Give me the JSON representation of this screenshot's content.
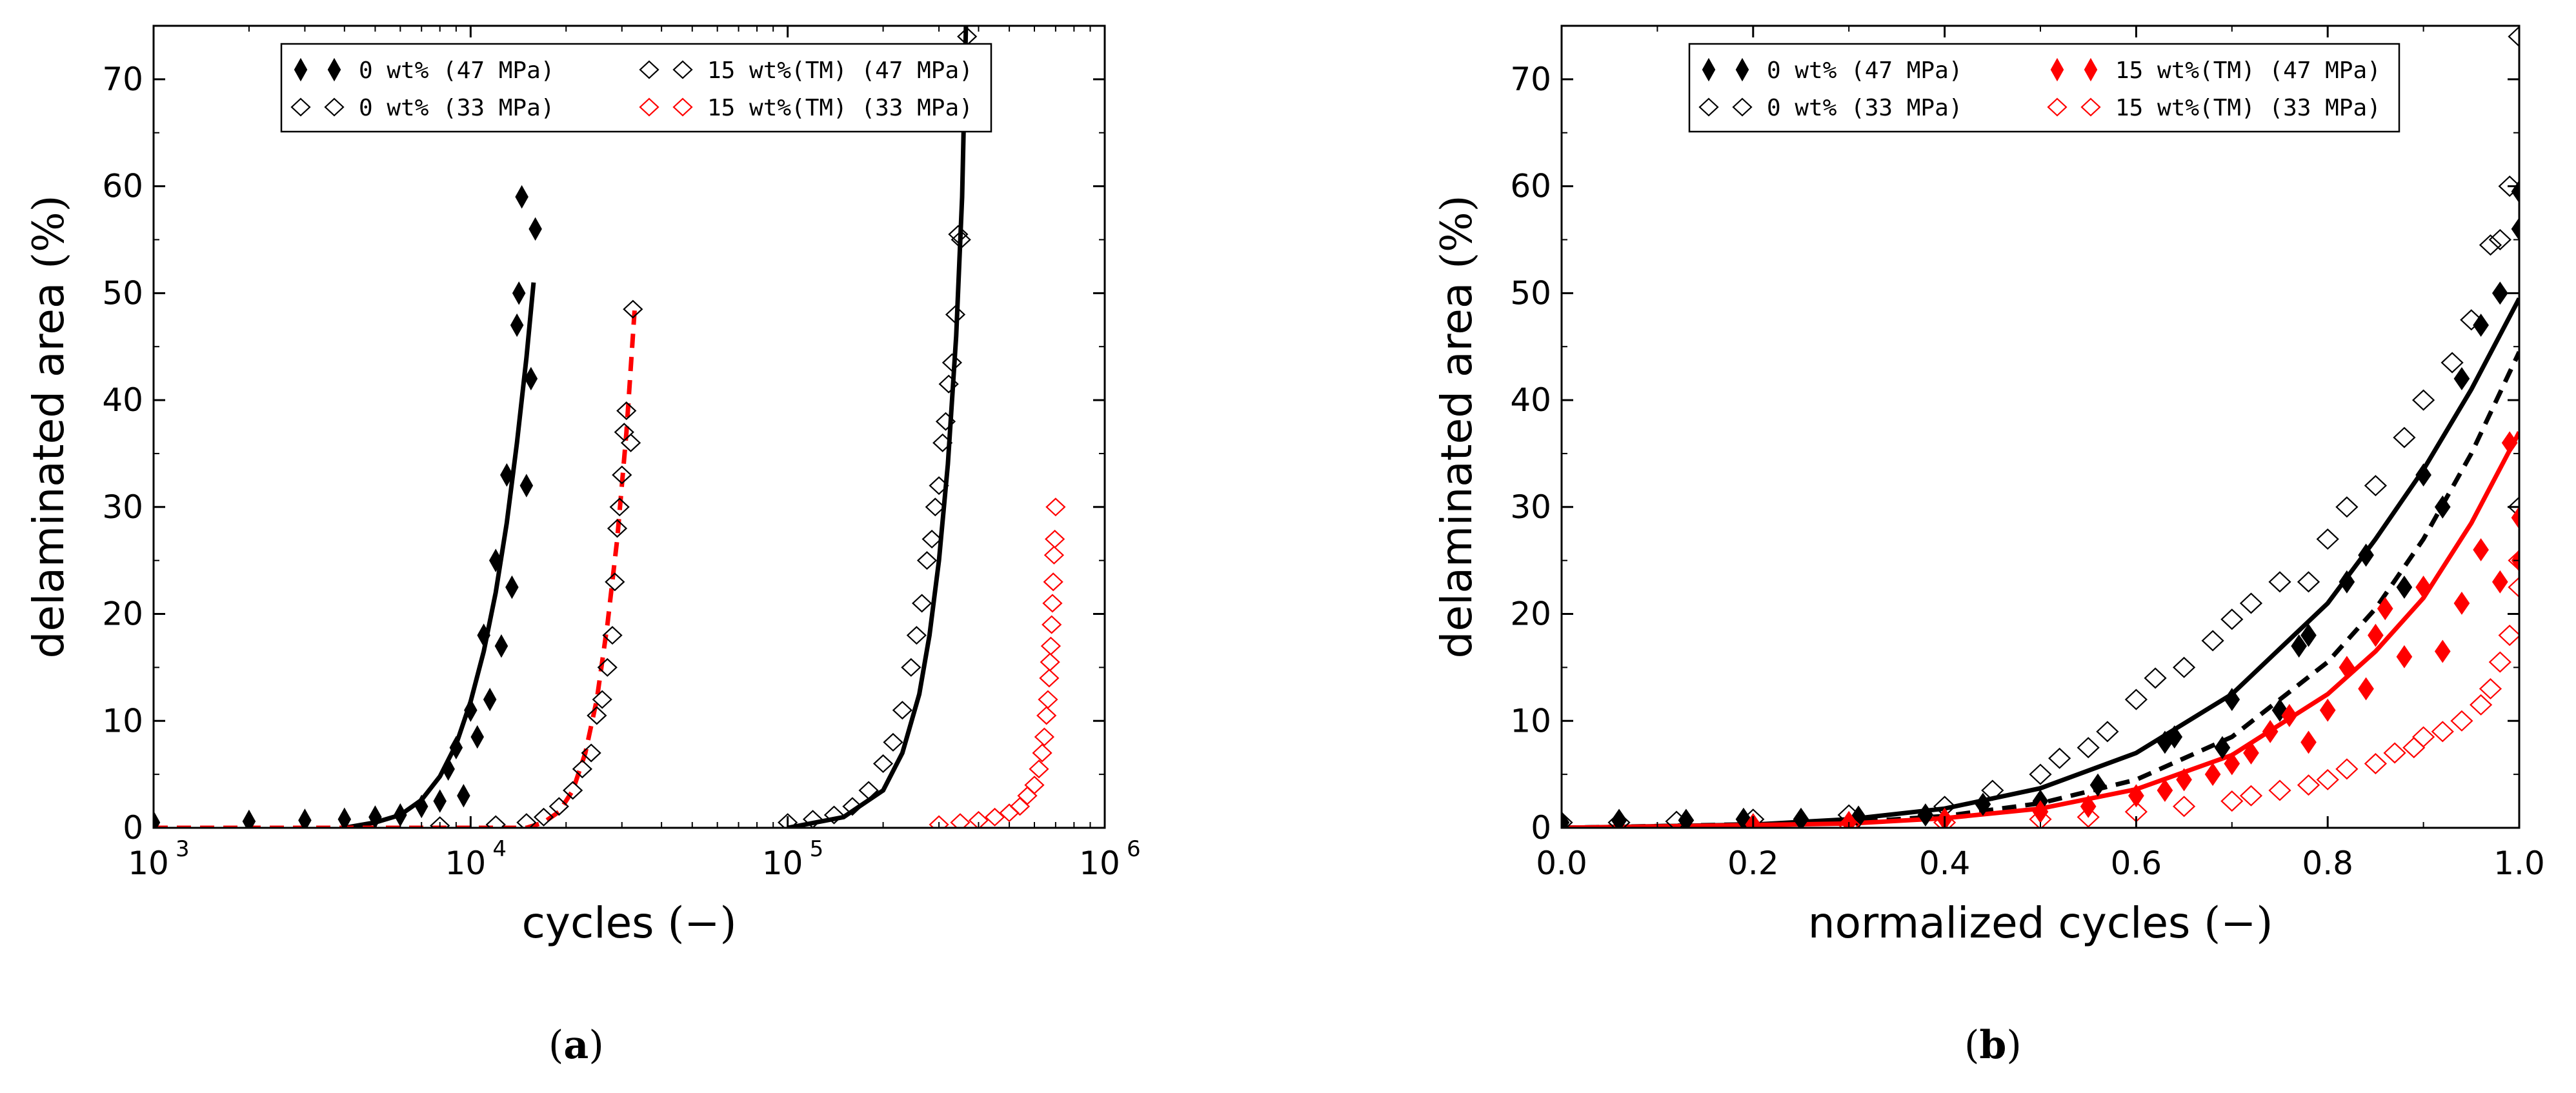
{
  "chart_data": [
    {
      "id": "a",
      "type": "scatter",
      "panel_label": "a",
      "xscale": "log",
      "xlim": [
        1000,
        1000000
      ],
      "ylim": [
        0,
        75
      ],
      "xlabel": "cycles",
      "xlabel_unit": "(−)",
      "ylabel": "delaminated area",
      "ylabel_unit": "(%)",
      "yticks": [
        0,
        10,
        20,
        30,
        40,
        50,
        60,
        70
      ],
      "xticks": [
        {
          "value": 1000,
          "base": "10",
          "exp": "3"
        },
        {
          "value": 10000,
          "base": "10",
          "exp": "4"
        },
        {
          "value": 100000,
          "base": "10",
          "exp": "5"
        },
        {
          "value": 1000000,
          "base": "10",
          "exp": "6"
        }
      ],
      "legend_position": "top",
      "legend_columns": [
        [
          {
            "label": "0 wt% (47 MPa)",
            "marker": "diamond-filled",
            "color": "#000000"
          },
          {
            "label": "0 wt% (33 MPa)",
            "marker": "diamond-open",
            "color": "#000000"
          }
        ],
        [
          {
            "label": "15 wt%(TM) (47 MPa)",
            "marker": "diamond-open",
            "color": "#000000"
          },
          {
            "label": "15 wt%(TM) (33 MPa)",
            "marker": "diamond-open",
            "color": "#ff0000"
          }
        ]
      ],
      "series": [
        {
          "name": "0 wt% (47 MPa)",
          "marker": "diamond-filled",
          "color": "#000000",
          "scale": "small",
          "x": [
            1000,
            2000,
            3000,
            4000,
            5000,
            6000,
            7000,
            8000,
            8500,
            9000,
            9500,
            10000,
            10500,
            11000,
            11500,
            12000,
            12500,
            13000,
            13500,
            14000,
            14200,
            14500,
            15000,
            15500,
            16000
          ],
          "y": [
            0.5,
            0.6,
            0.7,
            0.8,
            1.0,
            1.2,
            2.0,
            2.5,
            5.5,
            7.5,
            3.0,
            11.0,
            8.5,
            18.0,
            12.0,
            25.0,
            17.0,
            33.0,
            22.5,
            47.0,
            50.0,
            59.0,
            32.0,
            42.0,
            56.0
          ]
        },
        {
          "name": "15 wt%(TM) (47 MPa)",
          "marker": "diamond-open",
          "color": "#000000",
          "scale": "small",
          "x": [
            8000,
            12000,
            15000,
            17000,
            19000,
            21000,
            22500,
            24000,
            25000,
            26000,
            27000,
            28000,
            28500,
            29000,
            29500,
            30000,
            30500,
            31000,
            32000,
            32500
          ],
          "y": [
            0.2,
            0.3,
            0.5,
            1.0,
            2.0,
            3.5,
            5.5,
            7.0,
            10.5,
            12.0,
            15.0,
            18.0,
            23.0,
            28.0,
            30.0,
            33.0,
            37.0,
            39.0,
            36.0,
            48.5
          ]
        },
        {
          "name": "0 wt% (33 MPa)",
          "marker": "diamond-open",
          "color": "#000000",
          "scale": "small",
          "x": [
            100000,
            120000,
            140000,
            160000,
            180000,
            200000,
            215000,
            230000,
            245000,
            255000,
            265000,
            275000,
            285000,
            292000,
            300000,
            308000,
            315000,
            322000,
            330000,
            338000,
            345000,
            352000,
            360000,
            368000
          ],
          "y": [
            0.5,
            0.8,
            1.2,
            2.0,
            3.5,
            6.0,
            8.0,
            11.0,
            15.0,
            18.0,
            21.0,
            25.0,
            27.0,
            30.0,
            32.0,
            36.0,
            38.0,
            41.5,
            43.5,
            48.0,
            55.5,
            55.0,
            70.0,
            74.0
          ]
        },
        {
          "name": "15 wt%(TM) (33 MPa)",
          "marker": "diamond-open",
          "color": "#ff0000",
          "scale": "small",
          "x": [
            300000,
            350000,
            400000,
            450000,
            500000,
            540000,
            570000,
            600000,
            620000,
            635000,
            645000,
            655000,
            662000,
            668000,
            672000,
            676000,
            680000,
            684000,
            688000,
            692000,
            696000,
            700000
          ],
          "y": [
            0.3,
            0.5,
            0.7,
            1.0,
            1.4,
            2.0,
            3.0,
            4.0,
            5.5,
            7.0,
            8.5,
            10.5,
            12.0,
            14.0,
            15.5,
            17.0,
            19.0,
            21.0,
            23.0,
            25.5,
            27.0,
            30.0
          ]
        }
      ],
      "curves": [
        {
          "name": "fit 0 wt% (47 MPa)",
          "style": "solid",
          "color": "#000000",
          "x": [
            4000,
            5000,
            6000,
            7000,
            8000,
            9000,
            10000,
            11000,
            12000,
            13000,
            14000,
            15000,
            15800
          ],
          "y": [
            0,
            0.5,
            1.2,
            2.6,
            4.8,
            7.8,
            11.8,
            16.5,
            22.0,
            28.5,
            36.0,
            44.0,
            51.0
          ]
        },
        {
          "name": "fit 15 wt%(TM) (47 MPa)",
          "style": "dashed",
          "color": "#ff0000",
          "x": [
            1000,
            15000,
            17000,
            19000,
            21000,
            23000,
            25000,
            27000,
            29000,
            31000,
            33000
          ],
          "y": [
            0,
            0,
            0.5,
            1.5,
            3.5,
            7.0,
            12.0,
            19.0,
            27.0,
            37.0,
            49.0
          ]
        },
        {
          "name": "fit 0 wt% (33 MPa)",
          "style": "solid",
          "color": "#000000",
          "x": [
            100000,
            150000,
            200000,
            230000,
            260000,
            280000,
            300000,
            320000,
            340000,
            355000,
            365000
          ],
          "y": [
            0,
            1.0,
            3.5,
            7.0,
            12.5,
            18.0,
            25.0,
            34.0,
            46.0,
            59.0,
            75.0
          ]
        }
      ]
    },
    {
      "id": "b",
      "type": "scatter",
      "panel_label": "b",
      "xscale": "linear",
      "xlim": [
        0.0,
        1.0
      ],
      "ylim": [
        0,
        75
      ],
      "xlabel": "normalized cycles",
      "xlabel_unit": "(−)",
      "ylabel": "delaminated area",
      "ylabel_unit": "(%)",
      "yticks": [
        0,
        10,
        20,
        30,
        40,
        50,
        60,
        70
      ],
      "xticks": [
        {
          "value": 0.0,
          "label": "0.0"
        },
        {
          "value": 0.2,
          "label": "0.2"
        },
        {
          "value": 0.4,
          "label": "0.4"
        },
        {
          "value": 0.6,
          "label": "0.6"
        },
        {
          "value": 0.8,
          "label": "0.8"
        },
        {
          "value": 1.0,
          "label": "1.0"
        }
      ],
      "legend_position": "top",
      "legend_columns": [
        [
          {
            "label": "0 wt% (47 MPa)",
            "marker": "diamond-filled",
            "color": "#000000"
          },
          {
            "label": "0 wt% (33 MPa)",
            "marker": "diamond-open",
            "color": "#000000"
          }
        ],
        [
          {
            "label": "15 wt%(TM) (47 MPa)",
            "marker": "diamond-filled",
            "color": "#ff0000"
          },
          {
            "label": "15 wt%(TM) (33 MPa)",
            "marker": "diamond-open",
            "color": "#ff0000"
          }
        ]
      ],
      "series": [
        {
          "name": "0 wt% (33 MPa)",
          "marker": "diamond-open",
          "color": "#000000",
          "scale": "large",
          "x": [
            0.0,
            0.06,
            0.12,
            0.2,
            0.3,
            0.4,
            0.45,
            0.5,
            0.52,
            0.55,
            0.57,
            0.6,
            0.62,
            0.65,
            0.68,
            0.7,
            0.72,
            0.75,
            0.78,
            0.8,
            0.82,
            0.85,
            0.88,
            0.9,
            0.93,
            0.95,
            0.97,
            0.98,
            0.99,
            1.0,
            1.0
          ],
          "y": [
            0.5,
            0.5,
            0.6,
            0.8,
            1.2,
            2.0,
            3.5,
            5.0,
            6.5,
            7.5,
            9.0,
            12.0,
            14.0,
            15.0,
            17.5,
            19.5,
            21.0,
            23.0,
            23.0,
            27.0,
            30.0,
            32.0,
            36.5,
            40.0,
            43.5,
            47.5,
            54.5,
            55.0,
            60.0,
            74.0,
            30.0
          ]
        },
        {
          "name": "0 wt% (47 MPa)",
          "marker": "diamond-filled",
          "color": "#000000",
          "scale": "large",
          "x": [
            0.0,
            0.06,
            0.13,
            0.19,
            0.25,
            0.31,
            0.38,
            0.44,
            0.5,
            0.56,
            0.63,
            0.64,
            0.69,
            0.7,
            0.75,
            0.77,
            0.78,
            0.82,
            0.84,
            0.88,
            0.9,
            0.92,
            0.94,
            0.96,
            0.98,
            1.0,
            1.0
          ],
          "y": [
            0.5,
            0.7,
            0.7,
            0.8,
            0.8,
            1.0,
            1.2,
            2.2,
            2.5,
            4.0,
            8.0,
            8.5,
            7.5,
            12.0,
            11.0,
            17.0,
            18.0,
            23.0,
            25.5,
            22.5,
            33.0,
            30.0,
            42.0,
            47.0,
            50.0,
            56.0,
            59.5
          ]
        },
        {
          "name": "15 wt%(TM) (47 MPa)",
          "marker": "diamond-filled",
          "color": "#ff0000",
          "scale": "large",
          "x": [
            0.2,
            0.3,
            0.4,
            0.5,
            0.55,
            0.6,
            0.63,
            0.65,
            0.68,
            0.7,
            0.72,
            0.74,
            0.76,
            0.78,
            0.8,
            0.82,
            0.84,
            0.85,
            0.86,
            0.88,
            0.9,
            0.92,
            0.94,
            0.96,
            0.98,
            0.99,
            1.0,
            1.0
          ],
          "y": [
            0.3,
            0.5,
            0.8,
            1.5,
            2.0,
            3.0,
            3.5,
            4.5,
            5.0,
            6.0,
            7.0,
            9.0,
            10.5,
            8.0,
            11.0,
            15.0,
            13.0,
            18.0,
            20.5,
            16.0,
            22.5,
            16.5,
            21.0,
            26.0,
            23.0,
            36.0,
            29.0,
            25.0
          ]
        },
        {
          "name": "15 wt%(TM) (33 MPa)",
          "marker": "diamond-open",
          "color": "#ff0000",
          "scale": "large",
          "x": [
            0.3,
            0.4,
            0.5,
            0.55,
            0.6,
            0.65,
            0.7,
            0.72,
            0.75,
            0.78,
            0.8,
            0.82,
            0.85,
            0.87,
            0.89,
            0.9,
            0.92,
            0.94,
            0.96,
            0.97,
            0.98,
            0.99,
            1.0,
            1.0
          ],
          "y": [
            0.3,
            0.5,
            0.8,
            1.0,
            1.5,
            2.0,
            2.5,
            3.0,
            3.5,
            4.0,
            4.5,
            5.5,
            6.0,
            7.0,
            7.5,
            8.5,
            9.0,
            10.0,
            11.5,
            13.0,
            15.5,
            18.0,
            22.5,
            25.0
          ]
        }
      ],
      "curves": [
        {
          "name": "fit 0 wt% (33 MPa)",
          "style": "solid",
          "color": "#000000",
          "x": [
            0.0,
            0.2,
            0.3,
            0.4,
            0.5,
            0.6,
            0.7,
            0.8,
            0.85,
            0.9,
            0.95,
            1.0
          ],
          "y": [
            0,
            0.3,
            0.8,
            1.8,
            3.7,
            7.0,
            12.5,
            21.0,
            27.0,
            33.5,
            41.0,
            49.5
          ]
        },
        {
          "name": "fit 0 wt% (47 MPa)",
          "style": "dashed",
          "color": "#000000",
          "x": [
            0.0,
            0.3,
            0.4,
            0.5,
            0.6,
            0.7,
            0.8,
            0.85,
            0.9,
            0.95,
            1.0
          ],
          "y": [
            0,
            0.5,
            1.1,
            2.3,
            4.5,
            8.5,
            15.5,
            20.5,
            27.0,
            35.0,
            44.5
          ]
        },
        {
          "name": "fit 15 wt%(TM) (47 MPa)",
          "style": "solid",
          "color": "#ff0000",
          "x": [
            0.0,
            0.3,
            0.4,
            0.5,
            0.6,
            0.7,
            0.8,
            0.85,
            0.9,
            0.95,
            1.0
          ],
          "y": [
            0,
            0.4,
            0.9,
            1.8,
            3.6,
            6.8,
            12.5,
            16.5,
            21.5,
            28.5,
            37.0
          ]
        }
      ]
    }
  ]
}
